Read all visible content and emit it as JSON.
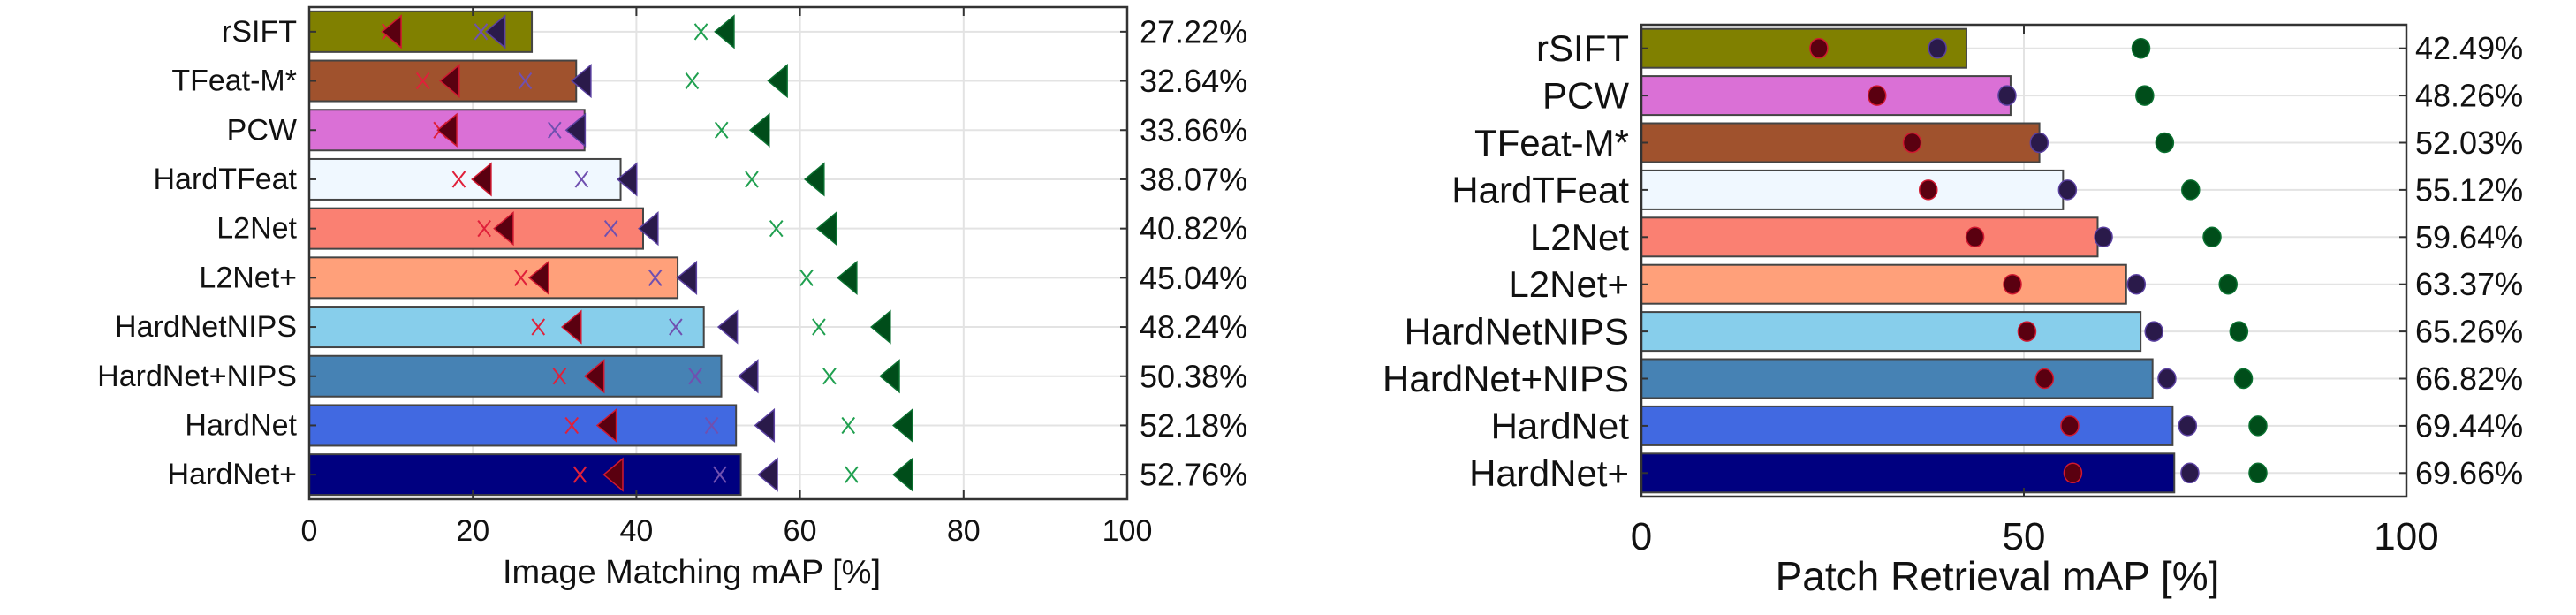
{
  "chart_data": [
    {
      "type": "bar",
      "orientation": "horizontal",
      "xlabel": "Image Matching mAP [%]",
      "xlim": [
        0,
        100
      ],
      "xticks": [
        "0",
        "20",
        "40",
        "60",
        "80",
        "100"
      ],
      "grid": true,
      "categories": [
        "rSIFT",
        "TFeat-M*",
        "PCW",
        "HardTFeat",
        "L2Net",
        "L2Net+",
        "HardNetNIPS",
        "HardNet+NIPS",
        "HardNet",
        "HardNet+"
      ],
      "values": [
        27.22,
        32.64,
        33.66,
        38.07,
        40.82,
        45.04,
        48.24,
        50.38,
        52.18,
        52.76
      ],
      "value_labels": [
        "27.22%",
        "32.64%",
        "33.66%",
        "38.07%",
        "40.82%",
        "45.04%",
        "48.24%",
        "50.38%",
        "52.18%",
        "52.76%"
      ],
      "bar_colors": [
        "#808000",
        "#a0522d",
        "#da70d6",
        "#f0f8ff",
        "#fa8072",
        "#ffa07a",
        "#87ceeb",
        "#4682b4",
        "#4169e1",
        "#000080"
      ],
      "markers": [
        {
          "shape": "x",
          "color": "#e0203a",
          "values": [
            9.7,
            13.9,
            16.0,
            18.3,
            21.4,
            25.9,
            28.0,
            30.6,
            32.1,
            33.1
          ]
        },
        {
          "shape": "triangle-left",
          "color": "#5a0010",
          "edge": "#d01830",
          "values": [
            10.2,
            17.3,
            17.0,
            21.2,
            23.9,
            28.2,
            32.2,
            35.0,
            36.5,
            37.3
          ]
        },
        {
          "shape": "x",
          "color": "#7050b0",
          "values": [
            21.0,
            26.4,
            30.0,
            33.3,
            36.9,
            42.3,
            44.8,
            47.2,
            49.2,
            50.2
          ]
        },
        {
          "shape": "triangle-left",
          "color": "#2a1a4a",
          "edge": "#5a40a0",
          "values": [
            22.9,
            33.4,
            32.7,
            39.0,
            41.6,
            46.3,
            51.3,
            53.8,
            55.8,
            56.2
          ]
        },
        {
          "shape": "x",
          "color": "#20a050",
          "values": [
            47.9,
            46.8,
            50.4,
            54.1,
            57.1,
            60.8,
            62.3,
            63.6,
            65.9,
            66.3
          ]
        },
        {
          "shape": "triangle-left",
          "color": "#004d1a",
          "edge": "#0a7030",
          "values": [
            50.9,
            57.4,
            55.2,
            61.9,
            63.4,
            65.9,
            70.0,
            71.1,
            72.7,
            72.7
          ]
        }
      ]
    },
    {
      "type": "bar",
      "orientation": "horizontal",
      "xlabel": "Patch Retrieval mAP [%]",
      "xlim": [
        0,
        100
      ],
      "xticks": [
        "0",
        "50",
        "100"
      ],
      "grid": true,
      "categories": [
        "rSIFT",
        "PCW",
        "TFeat-M*",
        "HardTFeat",
        "L2Net",
        "L2Net+",
        "HardNetNIPS",
        "HardNet+NIPS",
        "HardNet",
        "HardNet+"
      ],
      "values": [
        42.49,
        48.26,
        52.03,
        55.12,
        59.64,
        63.37,
        65.26,
        66.82,
        69.44,
        69.66
      ],
      "value_labels": [
        "42.49%",
        "48.26%",
        "52.03%",
        "55.12%",
        "59.64%",
        "63.37%",
        "65.26%",
        "66.82%",
        "69.44%",
        "69.66%"
      ],
      "bar_colors": [
        "#808000",
        "#da70d6",
        "#a0522d",
        "#f0f8ff",
        "#fa8072",
        "#ffa07a",
        "#87ceeb",
        "#4682b4",
        "#4169e1",
        "#000080"
      ],
      "markers": [
        {
          "shape": "circle",
          "color": "#5a0010",
          "edge": "#d01830",
          "values": [
            23.2,
            30.8,
            35.4,
            37.5,
            43.6,
            48.5,
            50.4,
            52.7,
            56.0,
            56.4
          ]
        },
        {
          "shape": "circle",
          "color": "#2a1a4a",
          "edge": "#5a40a0",
          "values": [
            38.7,
            47.8,
            52.0,
            55.7,
            60.4,
            64.7,
            67.0,
            68.7,
            71.4,
            71.7
          ]
        },
        {
          "shape": "circle",
          "color": "#004d1a",
          "edge": "#0a7030",
          "values": [
            65.3,
            65.8,
            68.4,
            71.8,
            74.6,
            76.7,
            78.1,
            78.7,
            80.6,
            80.6
          ]
        }
      ]
    }
  ]
}
